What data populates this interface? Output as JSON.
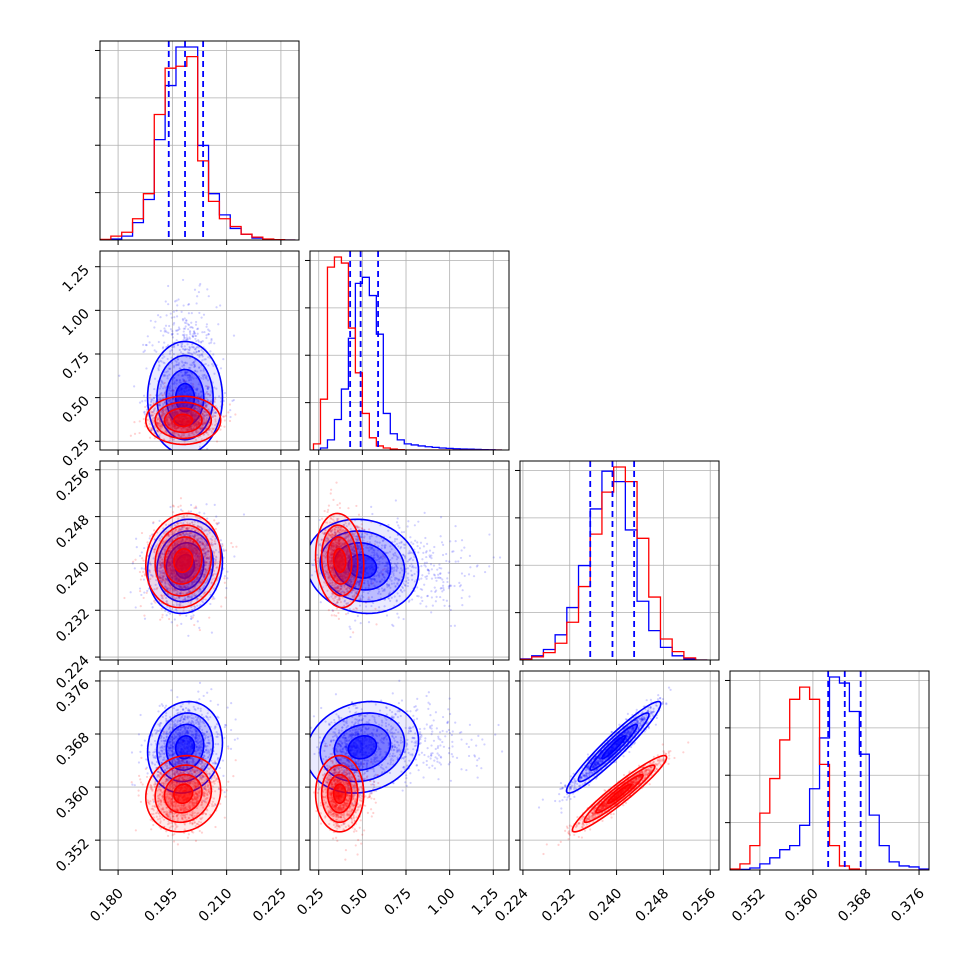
{
  "chart_data": {
    "type": "corner",
    "title": "",
    "parameters": [
      {
        "index": 0,
        "range": [
          0.175,
          0.23
        ],
        "ticks": [
          "0.180",
          "0.195",
          "0.210",
          "0.225"
        ],
        "tick_values": [
          0.18,
          0.195,
          0.21,
          0.225
        ]
      },
      {
        "index": 1,
        "range": [
          0.2,
          1.34
        ],
        "ticks": [
          "0.25",
          "0.50",
          "0.75",
          "1.00",
          "1.25"
        ],
        "tick_values": [
          0.25,
          0.5,
          0.75,
          1.0,
          1.25
        ]
      },
      {
        "index": 2,
        "range": [
          0.2235,
          0.2575
        ],
        "ticks": [
          "0.224",
          "0.232",
          "0.240",
          "0.248",
          "0.256"
        ],
        "tick_values": [
          0.224,
          0.232,
          0.24,
          0.248,
          0.256
        ]
      },
      {
        "index": 3,
        "range": [
          0.3475,
          0.3775
        ],
        "ticks": [
          "0.352",
          "0.360",
          "0.368",
          "0.376"
        ],
        "tick_values": [
          0.352,
          0.36,
          0.368,
          0.376
        ]
      }
    ],
    "series": [
      {
        "color": "#0000ff",
        "means": [
          0.1985,
          0.5,
          0.2395,
          0.366
        ],
        "stds": [
          0.0045,
          0.14,
          0.0035,
          0.003
        ],
        "correlations": {
          "0-1": 0.0,
          "0-2": 0.1,
          "0-3": 0.1,
          "1-2": -0.1,
          "1-3": 0.15,
          "2-3": 0.95
        },
        "quantile_lines": [
          [
            0.194,
            0.1985,
            0.2035
          ],
          [
            0.43,
            0.49,
            0.59
          ],
          [
            0.2355,
            0.2393,
            0.243
          ],
          [
            0.3623,
            0.3648,
            0.3672
          ]
        ]
      },
      {
        "color": "#ff0000",
        "means": [
          0.198,
          0.37,
          0.2405,
          0.359
        ],
        "stds": [
          0.0045,
          0.06,
          0.0035,
          0.0025
        ],
        "correlations": {
          "0-1": 0.0,
          "0-2": 0.1,
          "0-3": 0.1,
          "1-2": -0.1,
          "1-3": 0.0,
          "2-3": 0.95
        },
        "quantile_lines": []
      }
    ],
    "histograms": [
      {
        "param": 0,
        "bins": [
          0.175,
          0.178,
          0.181,
          0.184,
          0.187,
          0.19,
          0.193,
          0.196,
          0.199,
          0.202,
          0.205,
          0.208,
          0.211,
          0.214,
          0.217,
          0.22,
          0.223,
          0.226,
          0.229
        ],
        "blue": [
          0.2,
          0.5,
          2,
          9,
          21,
          52,
          80,
          100,
          100,
          49,
          24,
          13,
          6,
          3,
          1,
          0.4,
          0.2,
          0
        ],
        "red": [
          0.3,
          2,
          4,
          11,
          24,
          65,
          89,
          90,
          95,
          41,
          20,
          11,
          7,
          3,
          1.5,
          0.5,
          0.2,
          0
        ]
      },
      {
        "param": 1,
        "bins": [
          0.22,
          0.26,
          0.3,
          0.34,
          0.38,
          0.42,
          0.46,
          0.5,
          0.54,
          0.58,
          0.62,
          0.66,
          0.7,
          0.74,
          0.78,
          0.82,
          0.86,
          0.9,
          0.94,
          0.98,
          1.02,
          1.06,
          1.1,
          1.14,
          1.18,
          1.22,
          1.26,
          1.3
        ],
        "blue": [
          0,
          1,
          5,
          15,
          30,
          55,
          82,
          85,
          76,
          57,
          18,
          8,
          5,
          3,
          2.5,
          2,
          1.6,
          1.3,
          1,
          0.8,
          0.6,
          0.5,
          0.4,
          0.3,
          0.2,
          0.1,
          0
        ],
        "red": [
          3,
          25,
          90,
          95,
          92,
          60,
          38,
          18,
          6,
          2,
          1,
          0.5,
          0.2,
          0,
          0,
          0,
          0,
          0,
          0,
          0,
          0,
          0,
          0,
          0,
          0,
          0,
          0
        ]
      },
      {
        "param": 2,
        "bins": [
          0.2235,
          0.2255,
          0.2275,
          0.2295,
          0.2315,
          0.2335,
          0.2355,
          0.2375,
          0.2395,
          0.2415,
          0.2435,
          0.2455,
          0.2475,
          0.2495,
          0.2515,
          0.2535,
          0.2555
        ],
        "blue": [
          0.5,
          2,
          5,
          12,
          25,
          45,
          72,
          90,
          85,
          62,
          28,
          14,
          6,
          2,
          0.5,
          0
        ],
        "red": [
          0.3,
          1.5,
          3.5,
          8,
          18,
          35,
          60,
          80,
          92,
          85,
          58,
          30,
          10,
          4,
          1,
          0
        ]
      },
      {
        "param": 3,
        "bins": [
          0.3475,
          0.349,
          0.3505,
          0.352,
          0.3535,
          0.355,
          0.3565,
          0.358,
          0.3595,
          0.361,
          0.3625,
          0.364,
          0.3655,
          0.367,
          0.3685,
          0.37,
          0.3715,
          0.373,
          0.3745,
          0.376,
          0.3775
        ],
        "blue": [
          0,
          0.3,
          1,
          3,
          6,
          10,
          12,
          22,
          40,
          65,
          95,
          92,
          78,
          57,
          27,
          12,
          4,
          2,
          1.5,
          0.5
        ],
        "red": [
          0.5,
          3,
          12,
          28,
          45,
          64,
          84,
          90,
          84,
          52,
          12,
          2,
          0.5,
          0,
          0,
          0,
          0,
          0,
          0,
          0
        ]
      }
    ],
    "grid": true,
    "legend": "none"
  }
}
